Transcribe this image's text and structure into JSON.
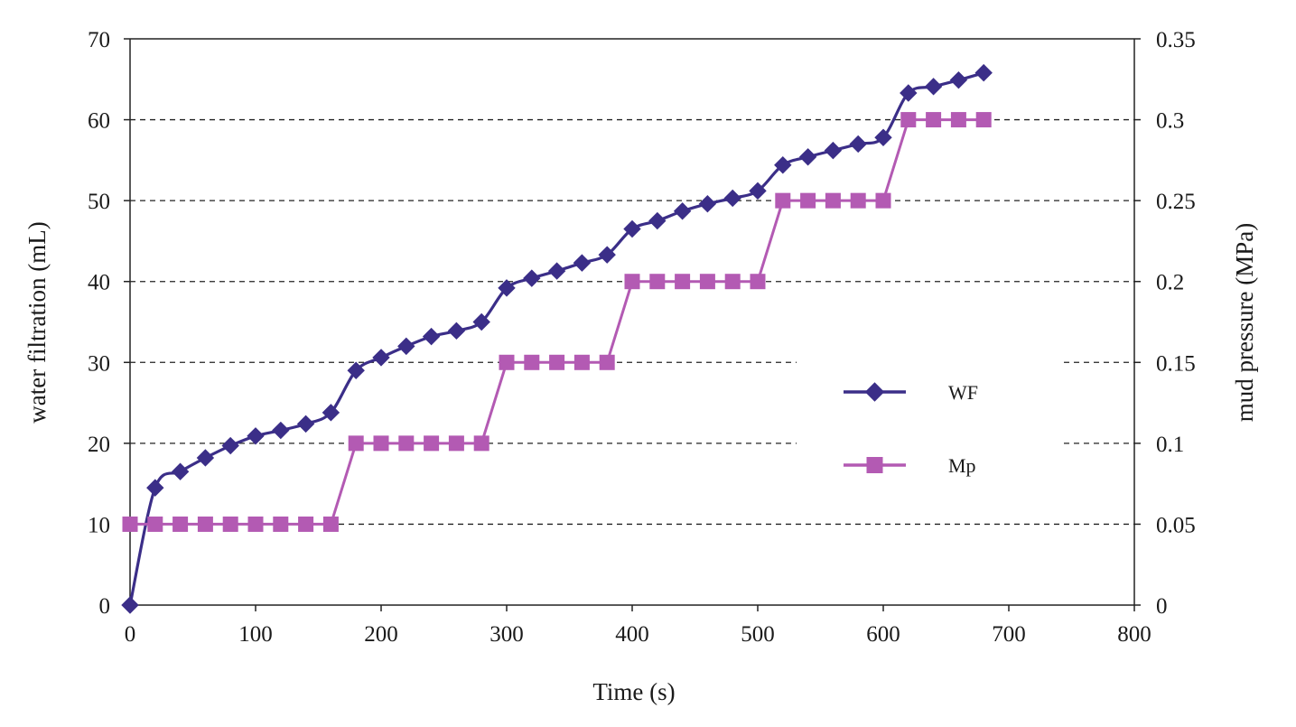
{
  "chart_data": {
    "type": "line",
    "xlabel": "Time (s)",
    "ylabel": "water filtration (mL)",
    "y2label": "mud pressure (MPa)",
    "xlim": [
      0,
      800
    ],
    "ylim": [
      0,
      70
    ],
    "y2lim": [
      0,
      0.35
    ],
    "x_ticks": [
      "0",
      "100",
      "200",
      "300",
      "400",
      "500",
      "600",
      "700",
      "800"
    ],
    "y_ticks": [
      "0",
      "10",
      "20",
      "30",
      "40",
      "50",
      "60",
      "70"
    ],
    "y2_ticks": [
      "0",
      "0.05",
      "0.1",
      "0.15",
      "0.2",
      "0.25",
      "0.3",
      "0.35"
    ],
    "grid": "horizontal dashed",
    "legend_position": "center-right",
    "series": [
      {
        "name": "WF",
        "axis": "left",
        "color": "#3b2e88",
        "marker": "diamond",
        "x": [
          0,
          20,
          40,
          60,
          80,
          100,
          120,
          140,
          160,
          180,
          200,
          220,
          240,
          260,
          280,
          300,
          320,
          340,
          360,
          380,
          400,
          420,
          440,
          460,
          480,
          500,
          520,
          540,
          560,
          580,
          600,
          620,
          640,
          660,
          680
        ],
        "y": [
          0,
          14.5,
          16.5,
          18.2,
          19.7,
          20.9,
          21.6,
          22.4,
          23.8,
          29.0,
          30.6,
          32.0,
          33.2,
          33.9,
          35.0,
          39.2,
          40.4,
          41.3,
          42.3,
          43.3,
          46.5,
          47.5,
          48.7,
          49.6,
          50.3,
          51.2,
          54.4,
          55.4,
          56.2,
          57.0,
          57.8,
          63.3,
          64.1,
          64.9,
          65.8
        ]
      },
      {
        "name": "Mp",
        "axis": "right",
        "color": "#b35ab3",
        "marker": "square",
        "x": [
          0,
          20,
          40,
          60,
          80,
          100,
          120,
          140,
          160,
          180,
          200,
          220,
          240,
          260,
          280,
          300,
          320,
          340,
          360,
          380,
          400,
          420,
          440,
          460,
          480,
          500,
          520,
          540,
          560,
          580,
          600,
          620,
          640,
          660,
          680
        ],
        "y": [
          0.05,
          0.05,
          0.05,
          0.05,
          0.05,
          0.05,
          0.05,
          0.05,
          0.05,
          0.1,
          0.1,
          0.1,
          0.1,
          0.1,
          0.1,
          0.15,
          0.15,
          0.15,
          0.15,
          0.15,
          0.2,
          0.2,
          0.2,
          0.2,
          0.2,
          0.2,
          0.25,
          0.25,
          0.25,
          0.25,
          0.25,
          0.3,
          0.3,
          0.3,
          0.3
        ]
      }
    ]
  }
}
